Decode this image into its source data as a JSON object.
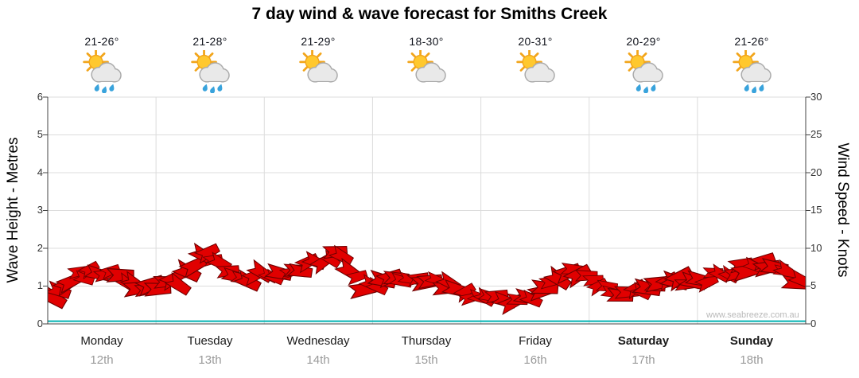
{
  "title": "7 day wind & wave forecast for Smiths Creek",
  "watermark": "www.seabreeze.com.au",
  "axes": {
    "left_label": "Wave Height - Metres",
    "right_label": "Wind Speed - Knots",
    "left_ticks": [
      0,
      1,
      2,
      3,
      4,
      5,
      6
    ],
    "right_ticks": [
      0,
      5,
      10,
      15,
      20,
      25,
      30
    ]
  },
  "days": [
    {
      "name": "Monday",
      "date": "12th",
      "temp": "21-26°",
      "icon": "sun-cloud-rain",
      "weekend": false
    },
    {
      "name": "Tuesday",
      "date": "13th",
      "temp": "21-28°",
      "icon": "sun-cloud-rain",
      "weekend": false
    },
    {
      "name": "Wednesday",
      "date": "14th",
      "temp": "21-29°",
      "icon": "sun-cloud",
      "weekend": false
    },
    {
      "name": "Thursday",
      "date": "15th",
      "temp": "18-30°",
      "icon": "sun-cloud",
      "weekend": false
    },
    {
      "name": "Friday",
      "date": "16th",
      "temp": "20-31°",
      "icon": "sun-cloud",
      "weekend": false
    },
    {
      "name": "Saturday",
      "date": "17th",
      "temp": "20-29°",
      "icon": "sun-cloud-rain",
      "weekend": true
    },
    {
      "name": "Sunday",
      "date": "18th",
      "temp": "21-26°",
      "icon": "sun-cloud-rain",
      "weekend": true
    }
  ],
  "chart_data": {
    "type": "area",
    "title": "7 day wind & wave forecast for Smiths Creek",
    "x_categories": [
      "Monday 12th",
      "Tuesday 13th",
      "Wednesday 14th",
      "Thursday 15th",
      "Friday 16th",
      "Saturday 17th",
      "Sunday 18th"
    ],
    "samples_per_day": 8,
    "ylabel_left": "Wave Height - Metres",
    "ylabel_right": "Wind Speed - Knots",
    "ylim_left": [
      0,
      6
    ],
    "ylim_right": [
      0,
      30
    ],
    "grid": true,
    "legend": false,
    "wind_knots": [
      4.0,
      5.5,
      6.5,
      6.8,
      6.5,
      6.0,
      5.3,
      5.0,
      5.2,
      5.8,
      7.5,
      8.8,
      8.3,
      6.8,
      6.2,
      6.5,
      6.5,
      6.8,
      7.2,
      7.8,
      8.5,
      9.2,
      6.5,
      5.0,
      5.2,
      5.6,
      6.0,
      5.5,
      6.0,
      5.2,
      4.5,
      4.0,
      3.8,
      3.2,
      3.0,
      3.5,
      4.5,
      6.0,
      7.0,
      6.5,
      5.5,
      4.5,
      3.8,
      4.2,
      5.2,
      6.0,
      5.8,
      5.5,
      5.8,
      6.2,
      6.8,
      7.5,
      8.3,
      7.8,
      6.5,
      5.8
    ],
    "wave_height_m_flat": 0.07,
    "colors": {
      "wind": "#E10000",
      "wind_outline": "#6E0000",
      "wave": "#00B2B2",
      "grid": "#DCDCDC",
      "axis": "#444444"
    }
  }
}
